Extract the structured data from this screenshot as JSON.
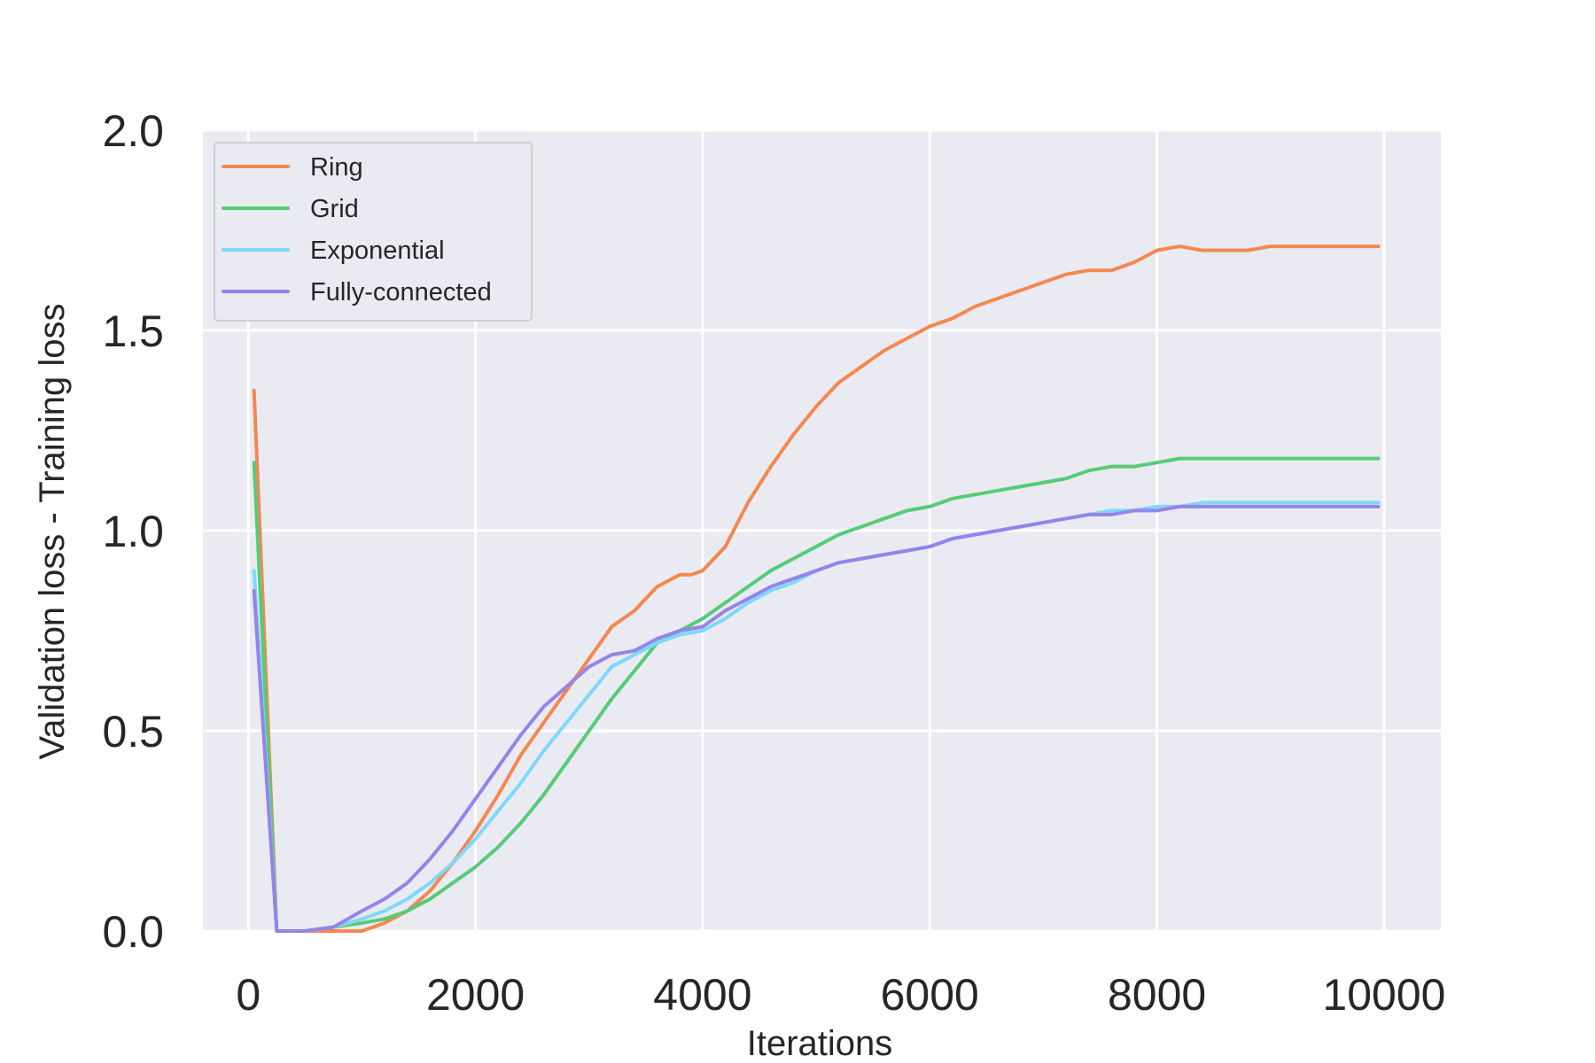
{
  "chart_data": {
    "type": "line",
    "title": "",
    "xlabel": "Iterations",
    "ylabel": "Validation loss - Training loss",
    "xlim": [
      -400,
      10500
    ],
    "ylim": [
      0,
      2.0
    ],
    "xticks": [
      0,
      2000,
      4000,
      6000,
      8000,
      10000
    ],
    "xtick_labels": [
      "0",
      "2000",
      "4000",
      "6000",
      "8000",
      "10000"
    ],
    "yticks": [
      0,
      0.5,
      1.0,
      1.5,
      2.0
    ],
    "ytick_labels": [
      "0.0",
      "0.5",
      "1.0",
      "1.5",
      "2.0"
    ],
    "grid": true,
    "legend_position": "top-left",
    "background": "#eaeaf2",
    "series": [
      {
        "name": "Ring",
        "color": "#f4884f",
        "x": [
          50,
          250,
          500,
          750,
          1000,
          1200,
          1400,
          1600,
          1800,
          2000,
          2200,
          2400,
          2600,
          2800,
          3000,
          3200,
          3400,
          3600,
          3800,
          3900,
          4000,
          4200,
          4400,
          4600,
          4800,
          5000,
          5200,
          5400,
          5600,
          5800,
          6000,
          6200,
          6400,
          6600,
          6800,
          7000,
          7200,
          7400,
          7600,
          7800,
          8000,
          8200,
          8400,
          8600,
          8800,
          9000,
          9200,
          9400,
          9600,
          9800,
          9950
        ],
        "y": [
          1.35,
          0.0,
          0.0,
          0.0,
          0.0,
          0.02,
          0.05,
          0.1,
          0.17,
          0.25,
          0.34,
          0.44,
          0.52,
          0.6,
          0.68,
          0.76,
          0.8,
          0.86,
          0.89,
          0.89,
          0.9,
          0.96,
          1.07,
          1.16,
          1.24,
          1.31,
          1.37,
          1.41,
          1.45,
          1.48,
          1.51,
          1.53,
          1.56,
          1.58,
          1.6,
          1.62,
          1.64,
          1.65,
          1.65,
          1.67,
          1.7,
          1.71,
          1.7,
          1.7,
          1.7,
          1.71,
          1.71,
          1.71,
          1.71,
          1.71,
          1.71
        ]
      },
      {
        "name": "Grid",
        "color": "#55cc77",
        "x": [
          50,
          250,
          500,
          750,
          1000,
          1200,
          1400,
          1600,
          1800,
          2000,
          2200,
          2400,
          2600,
          2800,
          3000,
          3200,
          3400,
          3600,
          3800,
          4000,
          4200,
          4400,
          4600,
          4800,
          5000,
          5200,
          5400,
          5600,
          5800,
          6000,
          6200,
          6400,
          6600,
          6800,
          7000,
          7200,
          7400,
          7600,
          7800,
          8000,
          8200,
          8400,
          8600,
          8800,
          9000,
          9200,
          9400,
          9600,
          9800,
          9950
        ],
        "y": [
          1.17,
          0.0,
          0.0,
          0.01,
          0.02,
          0.03,
          0.05,
          0.08,
          0.12,
          0.16,
          0.21,
          0.27,
          0.34,
          0.42,
          0.5,
          0.58,
          0.65,
          0.72,
          0.75,
          0.78,
          0.82,
          0.86,
          0.9,
          0.93,
          0.96,
          0.99,
          1.01,
          1.03,
          1.05,
          1.06,
          1.08,
          1.09,
          1.1,
          1.11,
          1.12,
          1.13,
          1.15,
          1.16,
          1.16,
          1.17,
          1.18,
          1.18,
          1.18,
          1.18,
          1.18,
          1.18,
          1.18,
          1.18,
          1.18,
          1.18
        ]
      },
      {
        "name": "Exponential",
        "color": "#7fd8f9",
        "x": [
          50,
          250,
          500,
          750,
          1000,
          1200,
          1400,
          1600,
          1800,
          2000,
          2200,
          2400,
          2600,
          2800,
          3000,
          3200,
          3400,
          3600,
          3800,
          4000,
          4200,
          4400,
          4600,
          4800,
          5000,
          5200,
          5400,
          5600,
          5800,
          6000,
          6200,
          6400,
          6600,
          6800,
          7000,
          7200,
          7400,
          7600,
          7800,
          8000,
          8200,
          8400,
          8600,
          8800,
          9000,
          9200,
          9400,
          9600,
          9800,
          9950
        ],
        "y": [
          0.9,
          0.0,
          0.0,
          0.01,
          0.03,
          0.05,
          0.08,
          0.12,
          0.17,
          0.23,
          0.3,
          0.37,
          0.45,
          0.52,
          0.59,
          0.66,
          0.69,
          0.72,
          0.74,
          0.75,
          0.78,
          0.82,
          0.85,
          0.87,
          0.9,
          0.92,
          0.93,
          0.94,
          0.95,
          0.96,
          0.98,
          0.99,
          1.0,
          1.01,
          1.02,
          1.03,
          1.04,
          1.05,
          1.05,
          1.06,
          1.06,
          1.07,
          1.07,
          1.07,
          1.07,
          1.07,
          1.07,
          1.07,
          1.07,
          1.07
        ]
      },
      {
        "name": "Fully-connected",
        "color": "#9484ea",
        "x": [
          50,
          250,
          500,
          750,
          1000,
          1200,
          1400,
          1600,
          1800,
          2000,
          2200,
          2400,
          2600,
          2800,
          3000,
          3200,
          3400,
          3600,
          3800,
          4000,
          4200,
          4400,
          4600,
          4800,
          5000,
          5200,
          5400,
          5600,
          5800,
          6000,
          6200,
          6400,
          6600,
          6800,
          7000,
          7200,
          7400,
          7600,
          7800,
          8000,
          8200,
          8400,
          8600,
          8800,
          9000,
          9200,
          9400,
          9600,
          9800,
          9950
        ],
        "y": [
          0.85,
          0.0,
          0.0,
          0.01,
          0.05,
          0.08,
          0.12,
          0.18,
          0.25,
          0.33,
          0.41,
          0.49,
          0.56,
          0.61,
          0.66,
          0.69,
          0.7,
          0.73,
          0.75,
          0.76,
          0.8,
          0.83,
          0.86,
          0.88,
          0.9,
          0.92,
          0.93,
          0.94,
          0.95,
          0.96,
          0.98,
          0.99,
          1.0,
          1.01,
          1.02,
          1.03,
          1.04,
          1.04,
          1.05,
          1.05,
          1.06,
          1.06,
          1.06,
          1.06,
          1.06,
          1.06,
          1.06,
          1.06,
          1.06,
          1.06
        ]
      }
    ]
  }
}
